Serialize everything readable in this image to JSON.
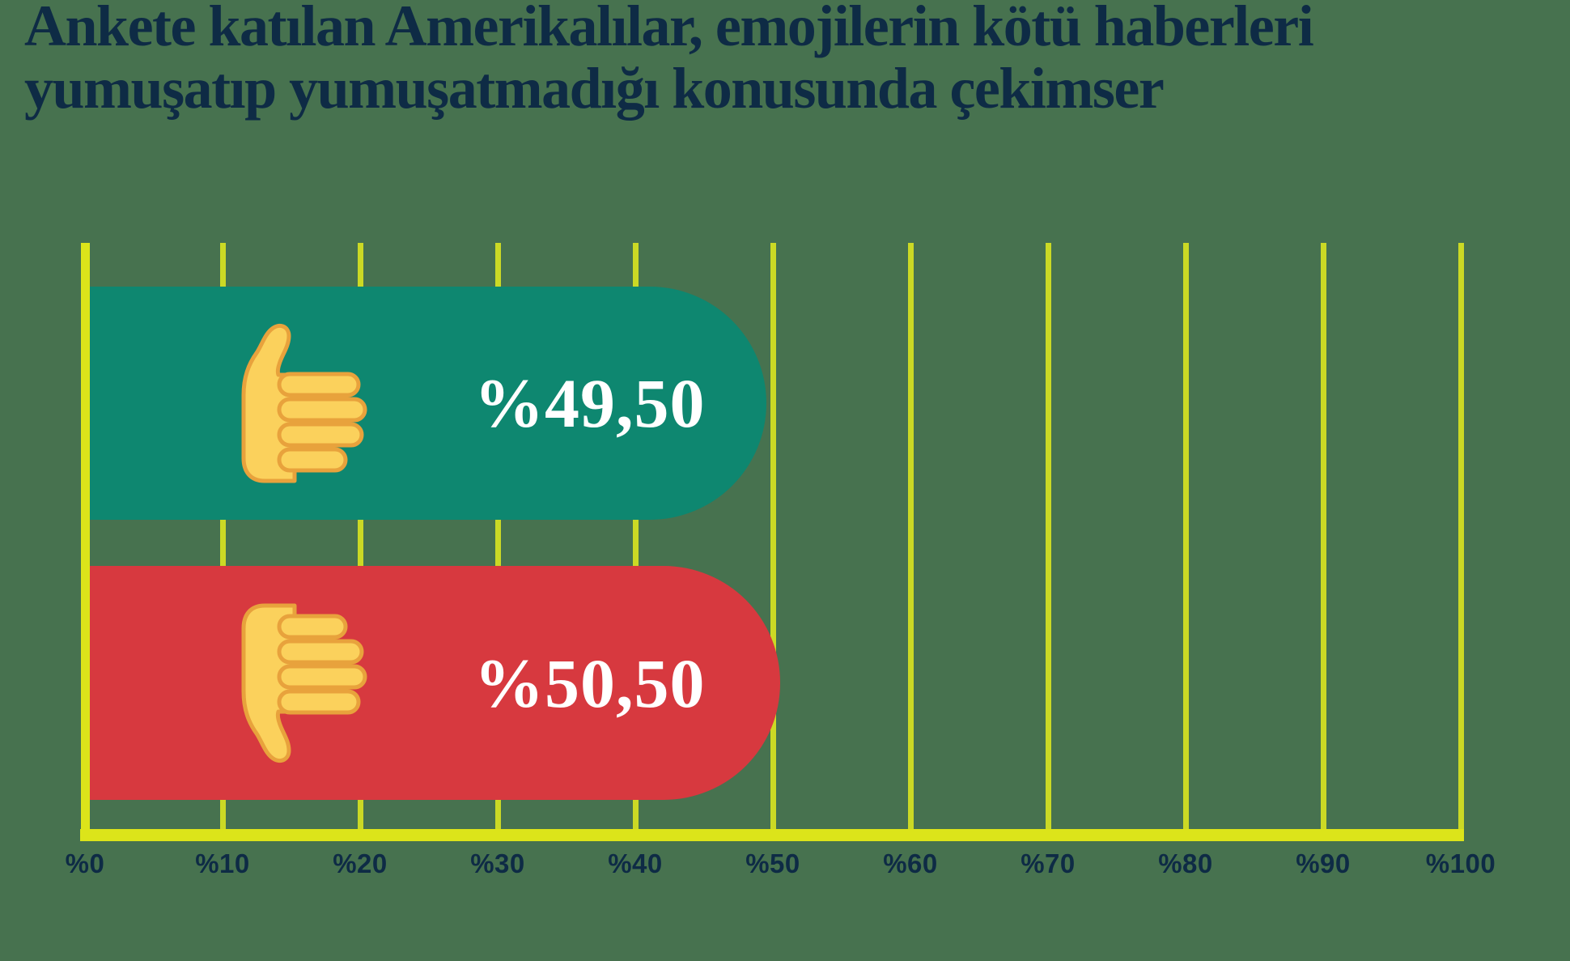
{
  "header": {
    "title_line1": "Ankete katılan Amerikalılar, emojilerin kötü haberleri",
    "title_line2": "yumuşatıp yumuşatmadığı konusunda çekimser"
  },
  "chart_data": {
    "type": "bar",
    "orientation": "horizontal",
    "title": "Ankete katılan Amerikalılar, emojilerin kötü haberleri yumuşatıp yumuşatmadığı konusunda çekimser",
    "categories": [
      "thumbs-up",
      "thumbs-down"
    ],
    "values": [
      49.5,
      50.5
    ],
    "value_labels": [
      "%49,50",
      "%50,50"
    ],
    "xlim": [
      0,
      100
    ],
    "x_tick_labels": [
      "%0",
      "%10",
      "%20",
      "%30",
      "%40",
      "%50",
      "%60",
      "%70",
      "%80",
      "%90",
      "%100"
    ],
    "grid": true,
    "legend": false,
    "bar_colors": [
      "#0E8770",
      "#D7393F"
    ],
    "icon_names": [
      "thumbs-up-icon",
      "thumbs-down-icon"
    ]
  },
  "colors": {
    "background": "#47724F",
    "grid_line": "#CBD925",
    "axis_line": "#DCE41A",
    "title_text": "#0E2B45",
    "tick_text": "#0E2B45",
    "value_text": "#FFFFFF",
    "bar_positive": "#0E8770",
    "bar_negative": "#D7393F",
    "emoji_fill": "#FBD15C",
    "emoji_outline": "#E8A23C"
  }
}
